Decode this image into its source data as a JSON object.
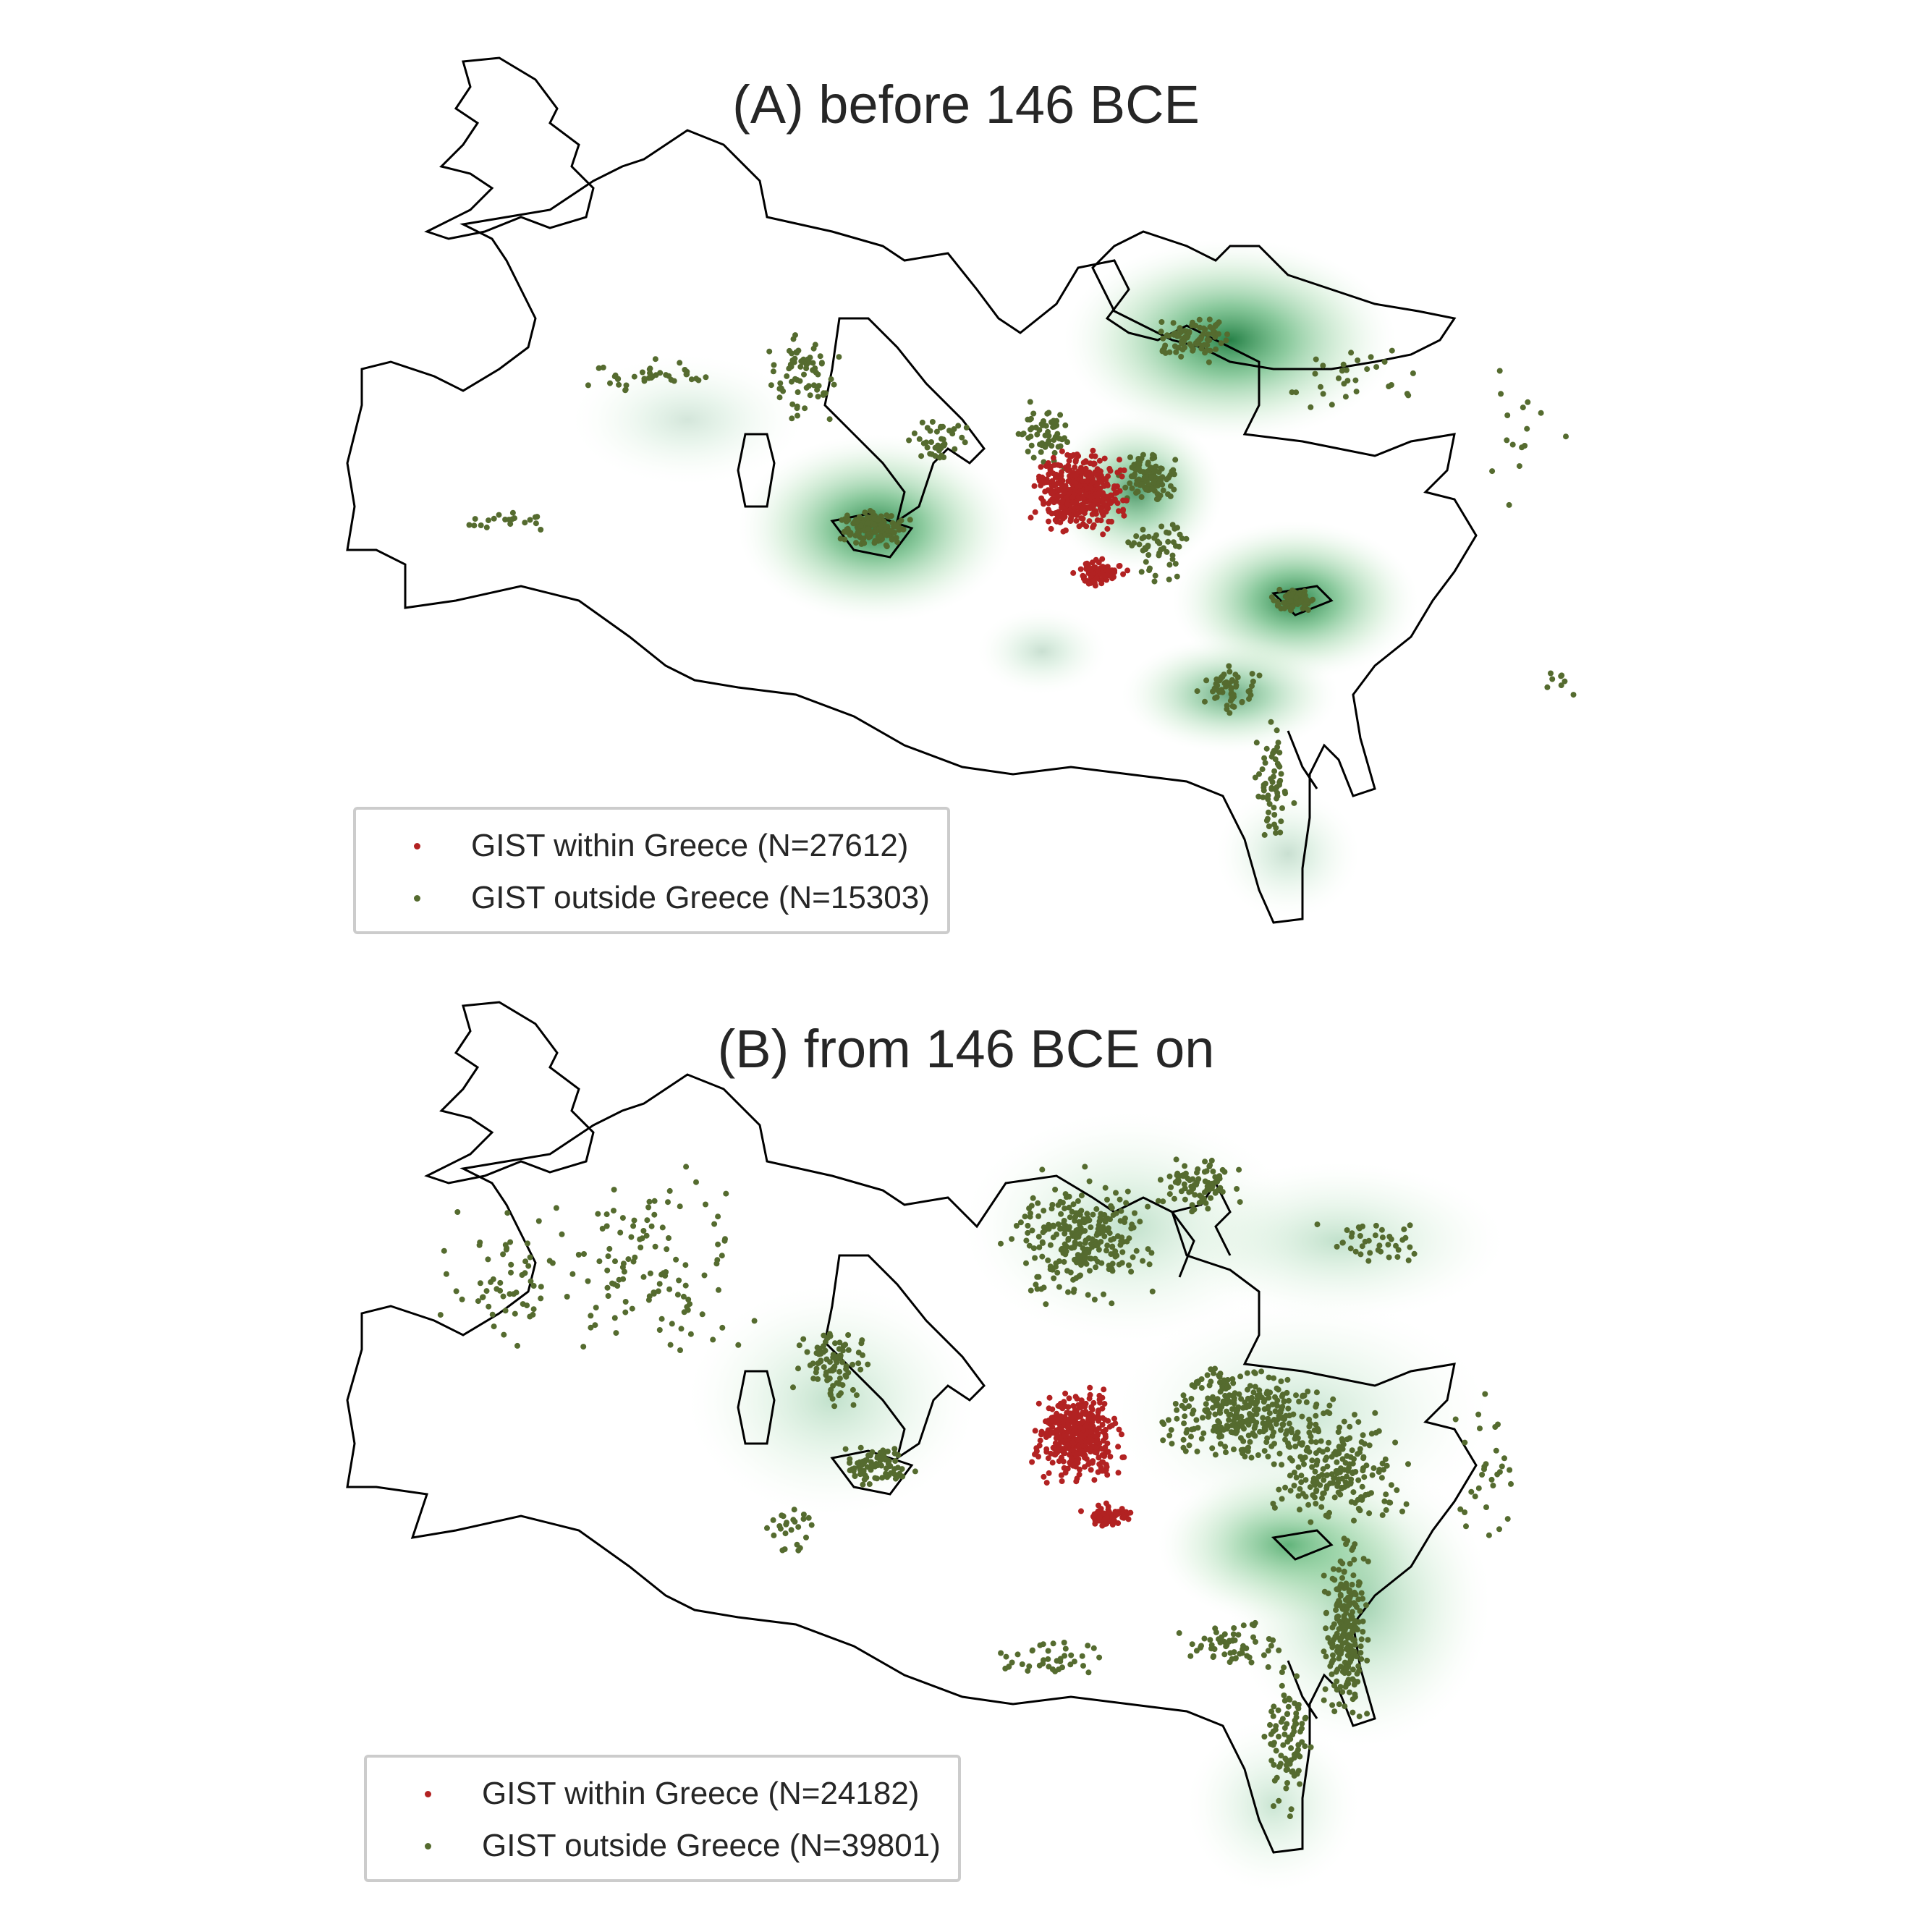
{
  "colors": {
    "within": "#b22222",
    "outside": "#556b2f",
    "density": "#2f8f4e",
    "outline": "#000000"
  },
  "panels": [
    {
      "title": "(A) before 146 BCE",
      "legend": {
        "within_label": "GIST within Greece (N=27612)",
        "outside_label": "GIST outside Greece (N=15303)"
      },
      "hotspots": [
        {
          "name": "sicily",
          "level": 0.9
        },
        {
          "name": "black-sea-north",
          "level": 0.9
        },
        {
          "name": "aegean-east",
          "level": 0.7
        },
        {
          "name": "cyprus",
          "level": 0.85
        },
        {
          "name": "nile-delta",
          "level": 0.6
        },
        {
          "name": "iberia",
          "level": 0.15
        },
        {
          "name": "libya",
          "level": 0.2
        },
        {
          "name": "upper-egypt",
          "level": 0.2
        }
      ]
    },
    {
      "title": "(B) from 146 BCE on",
      "legend": {
        "within_label": "GIST within Greece (N=24182)",
        "outside_label": "GIST outside Greece (N=39801)"
      },
      "hotspots": [
        {
          "name": "italy",
          "level": 0.35
        },
        {
          "name": "balkans",
          "level": 0.3
        },
        {
          "name": "black-sea-north",
          "level": 0.3
        },
        {
          "name": "cyprus",
          "level": 0.8
        },
        {
          "name": "levant",
          "level": 0.5
        },
        {
          "name": "anatolia",
          "level": 0.35
        },
        {
          "name": "upper-egypt",
          "level": 0.25
        }
      ]
    }
  ]
}
